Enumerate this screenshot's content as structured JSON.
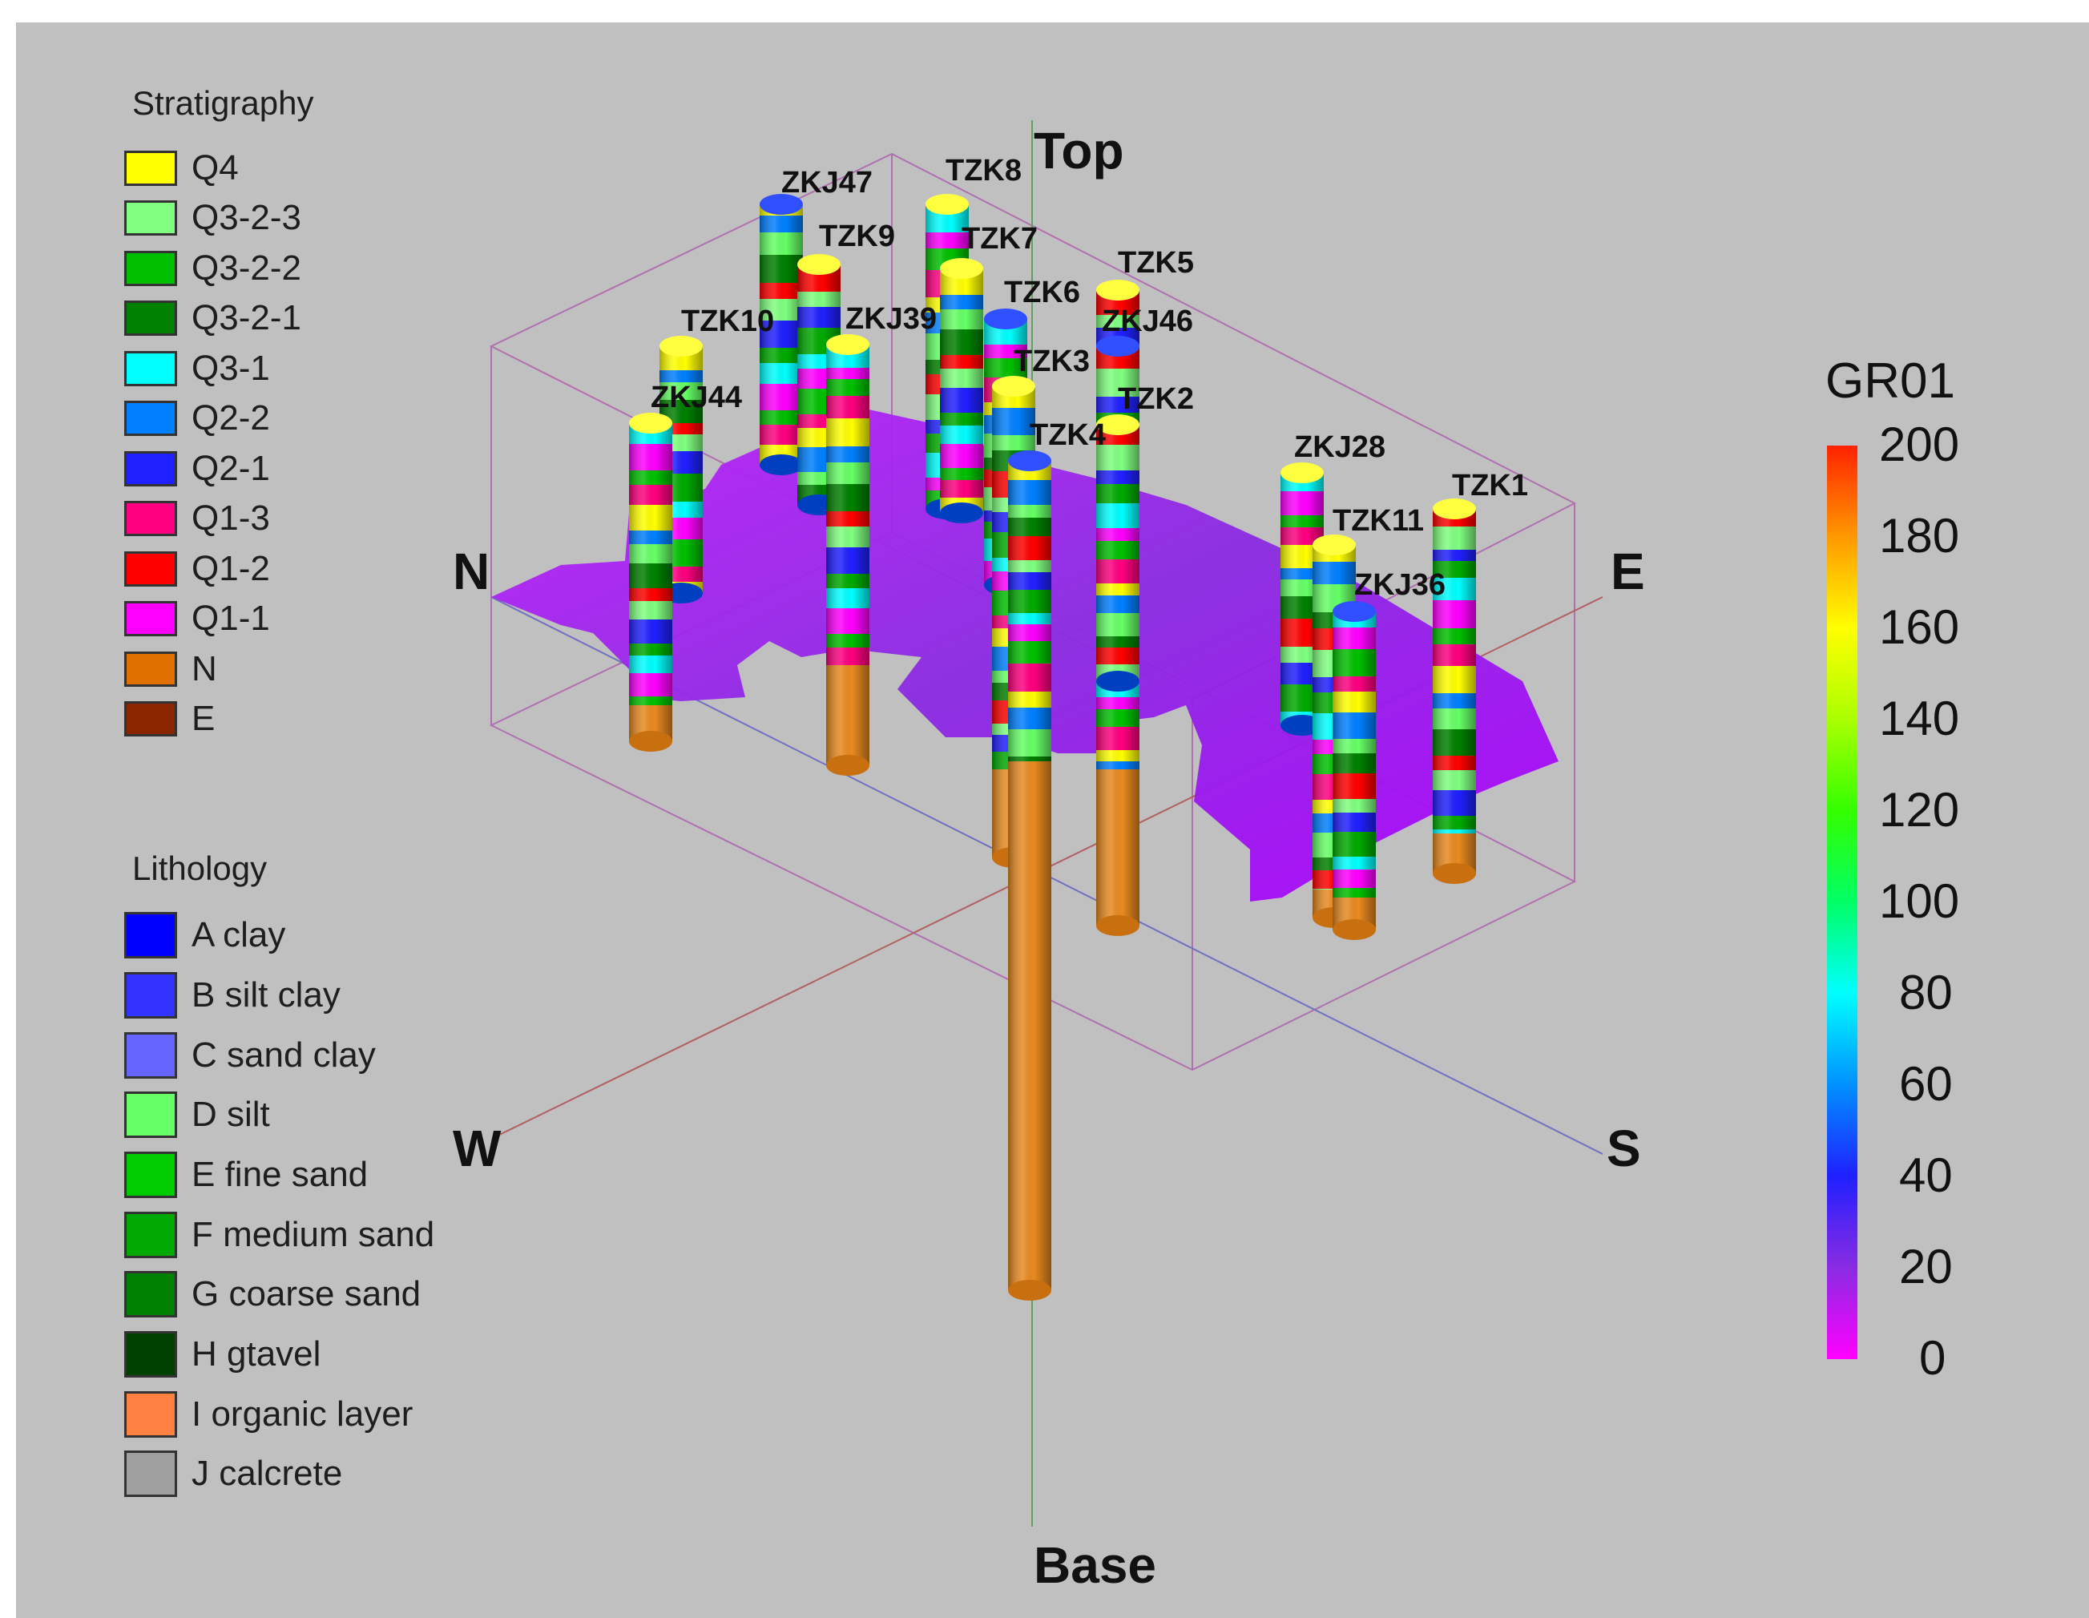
{
  "stratigraphy": {
    "title": "Stratigraphy",
    "items": [
      {
        "label": "Q4",
        "color": "#ffff00"
      },
      {
        "label": "Q3-2-3",
        "color": "#80ff80"
      },
      {
        "label": "Q3-2-2",
        "color": "#00c000"
      },
      {
        "label": "Q3-2-1",
        "color": "#008000"
      },
      {
        "label": "Q3-1",
        "color": "#00ffff"
      },
      {
        "label": "Q2-2",
        "color": "#0080ff"
      },
      {
        "label": "Q2-1",
        "color": "#2020ff"
      },
      {
        "label": "Q1-3",
        "color": "#ff0080"
      },
      {
        "label": "Q1-2",
        "color": "#ff0000"
      },
      {
        "label": "Q1-1",
        "color": "#ff00ff"
      },
      {
        "label": "N",
        "color": "#e07000"
      },
      {
        "label": "E",
        "color": "#8b2500"
      }
    ]
  },
  "lithology": {
    "title": "Lithology",
    "items": [
      {
        "label": "A clay",
        "color": "#0000ff"
      },
      {
        "label": "B silt clay",
        "color": "#3333ff"
      },
      {
        "label": "C sand clay",
        "color": "#6666ff"
      },
      {
        "label": "D silt",
        "color": "#66ff66"
      },
      {
        "label": "E fine sand",
        "color": "#00cc00"
      },
      {
        "label": "F medium sand",
        "color": "#00aa00"
      },
      {
        "label": "G coarse sand",
        "color": "#008000"
      },
      {
        "label": "H gtavel",
        "color": "#004000"
      },
      {
        "label": "I organic layer",
        "color": "#ff8040"
      },
      {
        "label": "J calcrete",
        "color": "#a0a0a0"
      }
    ]
  },
  "axes": {
    "top": "Top",
    "base": "Base",
    "north": "N",
    "east": "E",
    "west": "W",
    "south": "S"
  },
  "boreholes": [
    {
      "label": "ZKJ47"
    },
    {
      "label": "TZK8"
    },
    {
      "label": "TZK9"
    },
    {
      "label": "TZK7"
    },
    {
      "label": "TZK6"
    },
    {
      "label": "TZK5"
    },
    {
      "label": "TZK10"
    },
    {
      "label": "ZKJ39"
    },
    {
      "label": "ZKJ46"
    },
    {
      "label": "TZK3"
    },
    {
      "label": "ZKJ44"
    },
    {
      "label": "TZK2"
    },
    {
      "label": "TZK4"
    },
    {
      "label": "ZKJ28"
    },
    {
      "label": "TZK1"
    },
    {
      "label": "TZK11"
    },
    {
      "label": "ZKJ36"
    }
  ],
  "colorbar": {
    "title": "GR01",
    "ticks": [
      "200",
      "180",
      "160",
      "140",
      "120",
      "100",
      "80",
      "60",
      "40",
      "20",
      "0"
    ],
    "min": 0,
    "max": 200
  }
}
